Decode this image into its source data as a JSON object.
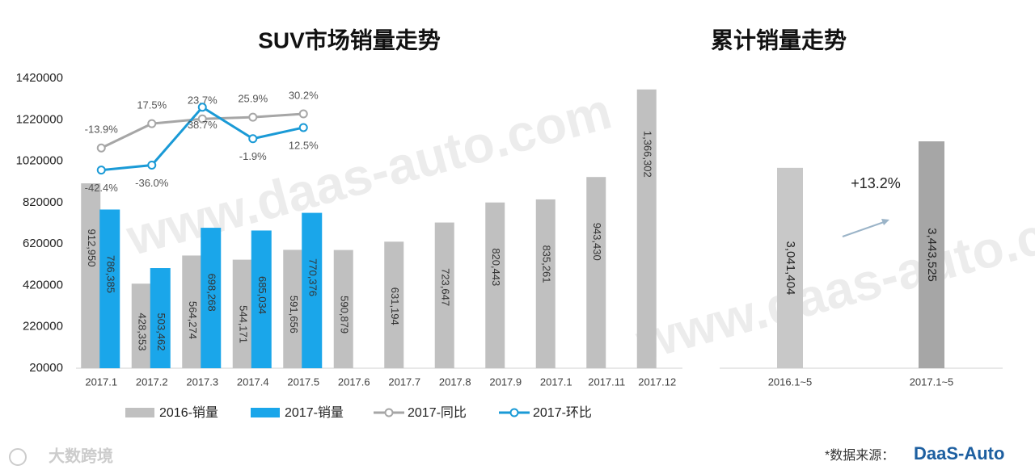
{
  "chart_data": [
    {
      "type": "bar",
      "title": "SUV市场销量走势",
      "categories": [
        "2017.1",
        "2017.2",
        "2017.3",
        "2017.4",
        "2017.5",
        "2017.6",
        "2017.7",
        "2017.8",
        "2017.9",
        "2017.1",
        "2017.11",
        "2017.12"
      ],
      "series": [
        {
          "name": "2016-销量",
          "color": "#c0c0c0",
          "type": "bar",
          "values": [
            912950,
            428353,
            564274,
            544171,
            591656,
            590879,
            631194,
            723647,
            820443,
            835261,
            943430,
            1366302
          ],
          "value_labels": [
            "912,950",
            "428,353",
            "564,274",
            "544,171",
            "591,656",
            "590,879",
            "631,194",
            "723,647",
            "820,443",
            "835,261",
            "943,430",
            "1,366,302"
          ]
        },
        {
          "name": "2017-销量",
          "color": "#1aa6ea",
          "type": "bar",
          "values": [
            786385,
            503462,
            698268,
            685034,
            770376,
            null,
            null,
            null,
            null,
            null,
            null,
            null
          ],
          "value_labels": [
            "786,385",
            "503,462",
            "698,268",
            "685,034",
            "770,376",
            null,
            null,
            null,
            null,
            null,
            null,
            null
          ]
        },
        {
          "name": "2017-同比",
          "color": "#a6a6a6",
          "type": "line",
          "axis": "y2",
          "label_position": "above",
          "values": [
            -13.9,
            17.5,
            23.7,
            25.9,
            30.2,
            null,
            null,
            null,
            null,
            null,
            null,
            null
          ],
          "value_labels": [
            "-13.9%",
            "17.5%",
            "23.7%",
            "25.9%",
            "30.2%",
            null,
            null,
            null,
            null,
            null,
            null,
            null
          ]
        },
        {
          "name": "2017-环比",
          "color": "#1a9ad6",
          "type": "line",
          "axis": "y2",
          "label_position": "below",
          "values": [
            -42.4,
            -36,
            38.7,
            -1.9,
            12.5,
            null,
            null,
            null,
            null,
            null,
            null,
            null
          ],
          "value_labels": [
            "-42.4%",
            "-36.0%",
            "38.7%",
            "-1.9%",
            "12.5%",
            null,
            null,
            null,
            null,
            null,
            null,
            null
          ]
        }
      ],
      "ylim": [
        20000,
        1420000
      ],
      "yticks": [
        20000,
        220000,
        420000,
        620000,
        820000,
        1020000,
        1220000,
        1420000
      ],
      "y2lim": [
        -298,
        76
      ],
      "legend": "bottom"
    },
    {
      "type": "bar",
      "title": "累计销量走势",
      "categories": [
        "2016.1~5",
        "2017.1~5"
      ],
      "values": [
        3041404,
        3443525
      ],
      "value_labels": [
        "3,041,404",
        "3,443,525"
      ],
      "colors": [
        "#c8c8c8",
        "#a6a6a6"
      ],
      "ylim": [
        0,
        4400000
      ],
      "annotation": "+13.2%"
    }
  ],
  "watermark": "www.daas-auto.com",
  "footer": {
    "brand": "大数跨境",
    "source": "*数据来源：",
    "logo": "DaaS-Auto"
  }
}
